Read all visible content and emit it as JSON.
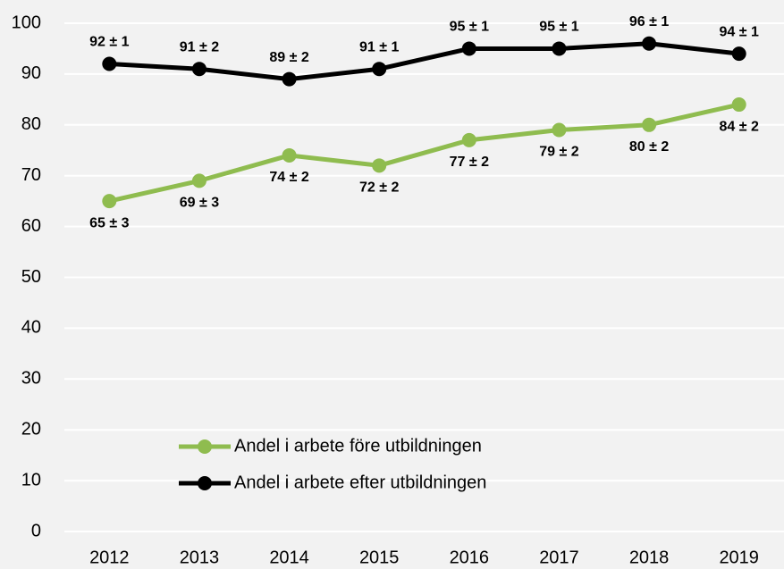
{
  "chart_data": {
    "type": "line",
    "categories": [
      "2012",
      "2013",
      "2014",
      "2015",
      "2016",
      "2017",
      "2018",
      "2019"
    ],
    "series": [
      {
        "name": "Andel i arbete före utbildningen",
        "color": "#8fbc4f",
        "values": [
          65,
          69,
          74,
          72,
          77,
          79,
          80,
          84
        ],
        "value_labels": [
          "65 ± 3",
          "69 ± 3",
          "74 ± 2",
          "72 ± 2",
          "77 ± 2",
          "79 ± 2",
          "80 ± 2",
          "84 ± 2"
        ],
        "label_position": "below"
      },
      {
        "name": "Andel i arbete efter utbildningen",
        "color": "#000000",
        "values": [
          92,
          91,
          89,
          91,
          95,
          95,
          96,
          94
        ],
        "value_labels": [
          "92 ± 1",
          "91 ± 2",
          "89 ± 2",
          "91 ± 1",
          "95 ± 1",
          "95 ± 1",
          "96 ± 1",
          "94 ± 1"
        ],
        "label_position": "above"
      }
    ],
    "ylim": [
      0,
      100
    ],
    "yticks": [
      0,
      10,
      20,
      30,
      40,
      50,
      60,
      70,
      80,
      90,
      100
    ],
    "grid": true,
    "legend": "lower center"
  }
}
